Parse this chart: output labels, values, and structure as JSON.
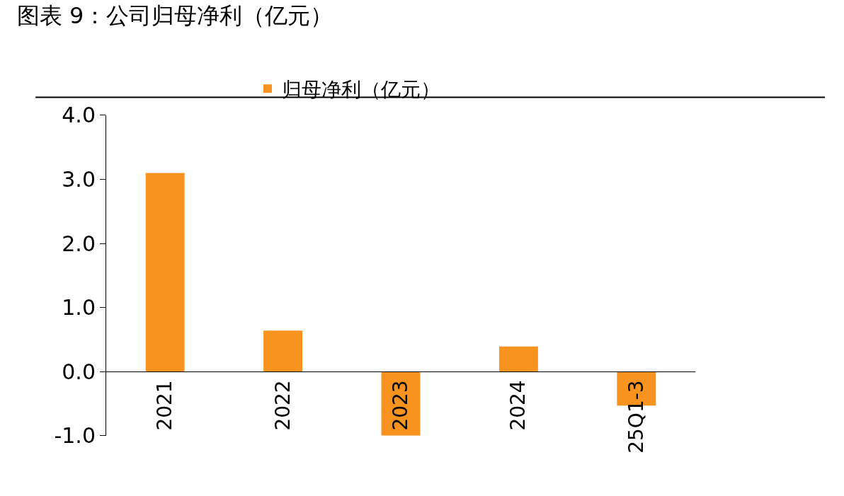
{
  "chart_data": {
    "type": "bar",
    "title": "图表 9：公司归母净利（亿元）",
    "categories": [
      "2021",
      "2022",
      "2023",
      "2024",
      "25Q1-3"
    ],
    "series": [
      {
        "name": "归母净利（亿元）",
        "color": "#f7931e",
        "values": [
          3.1,
          0.64,
          -1.0,
          0.39,
          -0.53
        ]
      }
    ],
    "ylim": [
      -1,
      4
    ],
    "yticks": [
      {
        "value": -1,
        "label": "-1.0"
      },
      {
        "value": 0,
        "label": "0.0"
      },
      {
        "value": 1,
        "label": "1.0"
      },
      {
        "value": 2,
        "label": "2.0"
      },
      {
        "value": 3,
        "label": "3.0"
      },
      {
        "value": 4,
        "label": "4.0"
      }
    ],
    "grid": false,
    "legend": "top"
  }
}
